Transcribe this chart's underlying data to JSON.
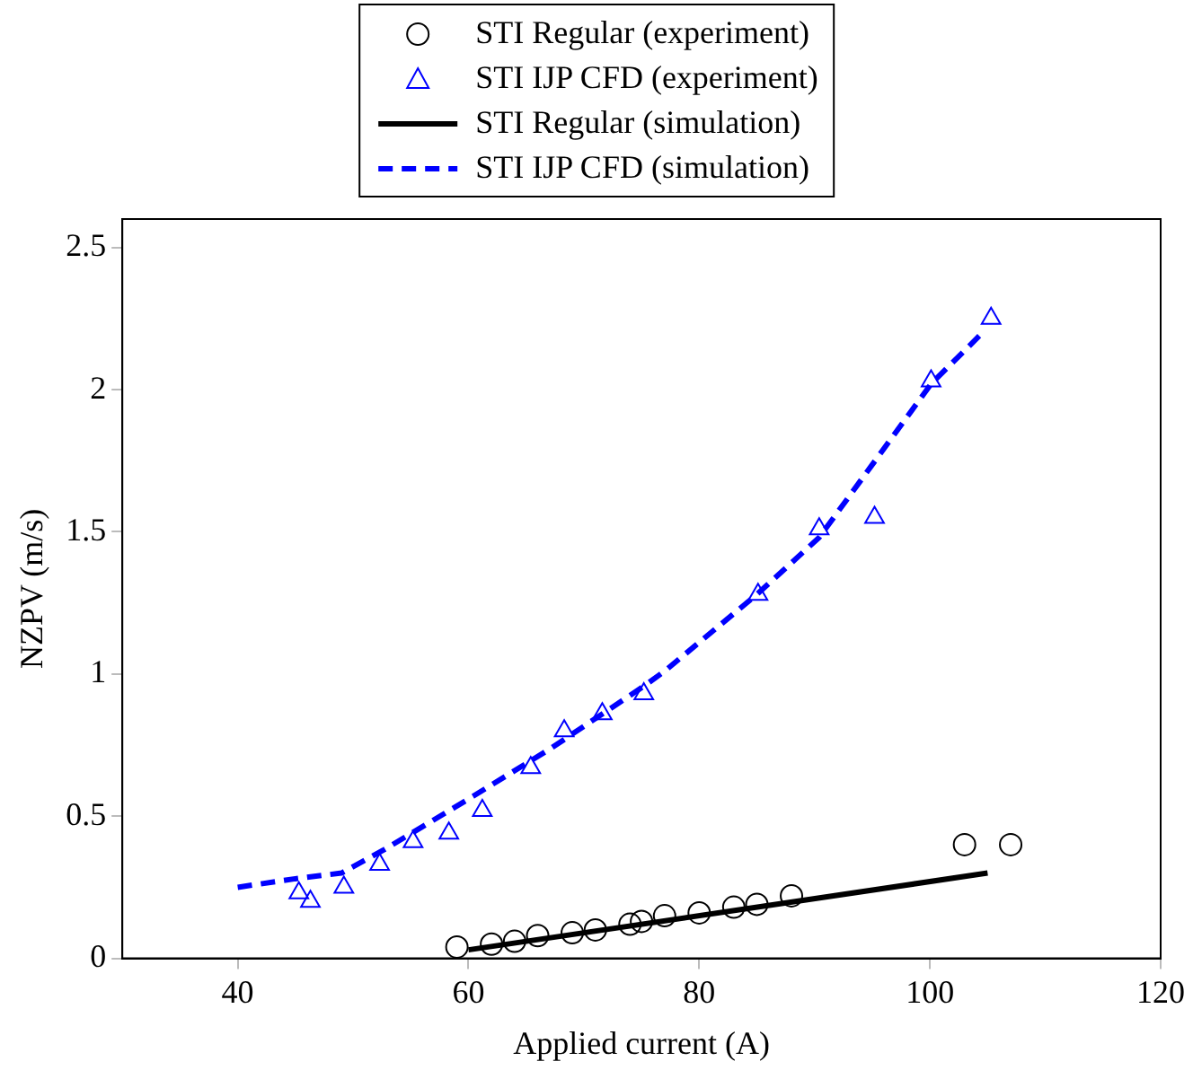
{
  "chart_data": {
    "type": "line",
    "xlabel": "Applied current (A)",
    "ylabel": "NZPV (m/s)",
    "xlim": [
      30,
      120
    ],
    "xticks": [
      40,
      60,
      80,
      100,
      120
    ],
    "ylim": [
      0,
      2.6
    ],
    "yticks": [
      0,
      0.5,
      1,
      1.5,
      2,
      2.5
    ],
    "grid": false,
    "legend": "top",
    "series": [
      {
        "name": "STI Regular (experiment)",
        "type": "scatter",
        "marker": "circle",
        "color": "#000000",
        "x": [
          59,
          62,
          64,
          66,
          69,
          71,
          74,
          75,
          77,
          80,
          83,
          85,
          88,
          103,
          107
        ],
        "values": [
          0.04,
          0.05,
          0.06,
          0.08,
          0.09,
          0.1,
          0.12,
          0.13,
          0.15,
          0.16,
          0.18,
          0.19,
          0.22,
          0.4,
          0.4
        ]
      },
      {
        "name": "STI IJP CFD (experiment)",
        "type": "scatter",
        "marker": "triangle",
        "color": "#0000ff",
        "x": [
          45.3,
          46.3,
          49.2,
          52.3,
          55.2,
          58.3,
          61.2,
          65.4,
          68.3,
          71.6,
          75.2,
          85.1,
          90.4,
          95.2,
          100.1,
          105.3
        ],
        "values": [
          0.23,
          0.2,
          0.25,
          0.33,
          0.41,
          0.44,
          0.52,
          0.67,
          0.8,
          0.86,
          0.93,
          1.28,
          1.51,
          1.55,
          2.03,
          2.25
        ]
      },
      {
        "name": "STI Regular (simulation)",
        "type": "line",
        "marker": "none",
        "line_style": "solid",
        "color": "#000000",
        "x": [
          60,
          105
        ],
        "values": [
          0.03,
          0.3
        ]
      },
      {
        "name": "STI IJP CFD (simulation)",
        "type": "line",
        "marker": "none",
        "line_style": "dashed",
        "color": "#0000ff",
        "x": [
          40,
          45,
          49,
          52.6,
          60.4,
          67.2,
          75.3,
          77,
          85,
          90.4,
          100.1,
          104.8
        ],
        "values": [
          0.25,
          0.28,
          0.3,
          0.38,
          0.57,
          0.74,
          0.96,
          1.01,
          1.28,
          1.48,
          2.02,
          2.21
        ]
      }
    ]
  }
}
